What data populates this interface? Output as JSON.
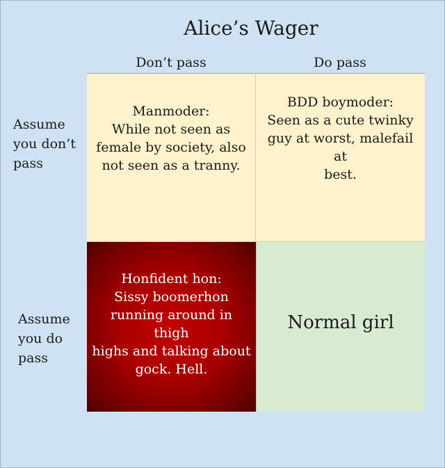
{
  "title": "Alice’s Wager",
  "columns": [
    "Don’t pass",
    "Do pass"
  ],
  "rows": [
    "Assume\nyou don’t\npass",
    "Assume\nyou do\npass"
  ],
  "cells": {
    "assume_dont_pass__dont_pass": "Manmoder:\nWhile not seen as\nfemale by society, also\nnot seen as a tranny.",
    "assume_dont_pass__do_pass": "BDD boymoder:\nSeen as a cute twinky\nguy at worst, malefail at\nbest.",
    "assume_do_pass__dont_pass": "Honfident hon:\nSissy boomerhon\nrunning around in thigh\nhighs and talking about\ngock. Hell.",
    "assume_do_pass__do_pass": "Normal girl"
  },
  "colors": {
    "background": "#cfe2f3",
    "cell_cream": "#fff2cc",
    "cell_red": "#c00000",
    "cell_green": "#d9ead3"
  }
}
